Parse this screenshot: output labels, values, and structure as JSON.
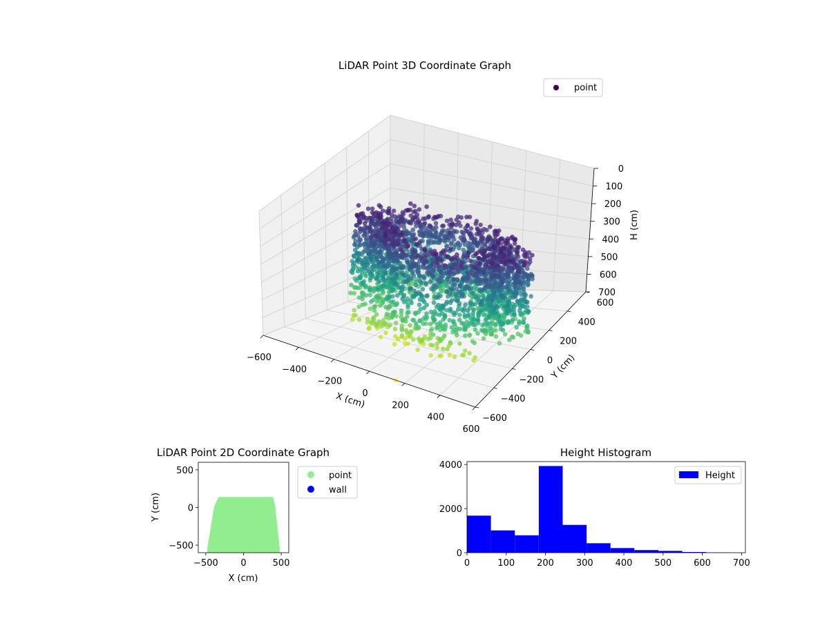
{
  "chart_data": [
    {
      "type": "scatter",
      "projection": "3d",
      "title": "LiDAR Point 3D Coordinate Graph",
      "xlabel": "X (cm)",
      "ylabel": "Y (cm)",
      "zlabel": "H (cm)",
      "xlim": [
        -600,
        600
      ],
      "ylim": [
        -600,
        600
      ],
      "zlim": [
        700,
        0
      ],
      "xticks": [
        "−600",
        "−400",
        "−200",
        "0",
        "200",
        "400",
        "600"
      ],
      "yticks": [
        "−600",
        "−400",
        "−200",
        "0",
        "200",
        "400",
        "600"
      ],
      "zticks": [
        "0",
        "100",
        "200",
        "300",
        "400",
        "500",
        "600",
        "700"
      ],
      "grid": true,
      "colormap": "viridis",
      "legend": {
        "location": "top-right",
        "entries": [
          {
            "label": "point",
            "color": "#440154"
          }
        ]
      },
      "series": [
        {
          "name": "point",
          "description": "dense point cloud; height drives color (low H = dark purple, high H = yellow)"
        }
      ]
    },
    {
      "type": "scatter",
      "title": "LiDAR Point 2D Coordinate Graph",
      "xlabel": "X (cm)",
      "ylabel": "Y (cm)",
      "xlim": [
        -600,
        600
      ],
      "ylim": [
        -600,
        600
      ],
      "xticks": [
        "−500",
        "0",
        "500"
      ],
      "yticks": [
        "−500",
        "0",
        "500"
      ],
      "legend": {
        "location": "outside-right",
        "entries": [
          {
            "label": "point",
            "color": "#90ee90"
          },
          {
            "label": "wall",
            "color": "#0000ff"
          }
        ]
      },
      "footprint": {
        "x_min": -480,
        "x_max": 480,
        "y_min": -600,
        "y_max": 140
      }
    },
    {
      "type": "bar",
      "subtype": "histogram",
      "title": "Height Histogram",
      "color": "#0000ff",
      "bin_edges": [
        0,
        61,
        122,
        183,
        244,
        305,
        366,
        427,
        488,
        549,
        610,
        671
      ],
      "counts": [
        1680,
        1010,
        790,
        3930,
        1260,
        430,
        210,
        120,
        80,
        30,
        10
      ],
      "xlim": [
        0,
        710
      ],
      "ylim": [
        0,
        4130
      ],
      "xticks": [
        "0",
        "100",
        "200",
        "300",
        "400",
        "500",
        "600",
        "700"
      ],
      "yticks": [
        "0",
        "2000",
        "4000"
      ],
      "legend": {
        "location": "top-right",
        "entries": [
          {
            "label": "Height",
            "color": "#0000ff"
          }
        ]
      }
    }
  ]
}
